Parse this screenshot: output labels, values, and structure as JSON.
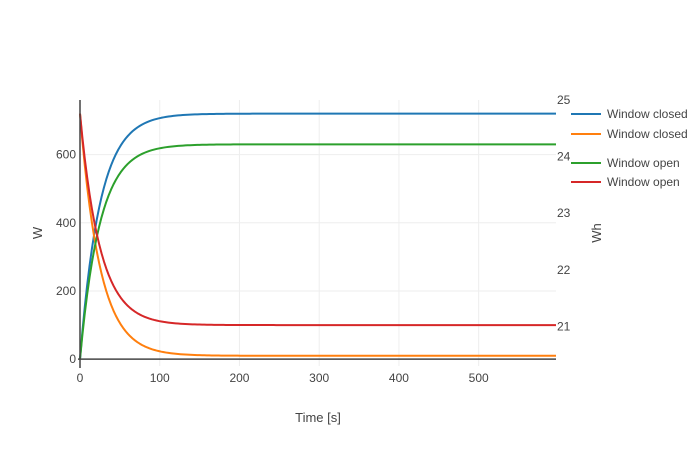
{
  "chart_data": {
    "type": "line",
    "xlabel": "Time [s]",
    "ylabel": "W",
    "y2label": "Wh",
    "xlim": [
      0,
      597
    ],
    "ylim": [
      -20,
      760
    ],
    "y2lim": [
      20.3,
      25
    ],
    "x_ticks": [
      "0",
      "100",
      "200",
      "300",
      "400",
      "500"
    ],
    "x_tick_values": [
      0,
      100,
      200,
      300,
      400,
      500
    ],
    "y_ticks": [
      "0",
      "200",
      "400",
      "600"
    ],
    "y_tick_values": [
      0,
      200,
      400,
      600
    ],
    "y2_ticks": [
      "21",
      "22",
      "23",
      "24",
      "25"
    ],
    "y2_tick_values": [
      21,
      22,
      23,
      24,
      25
    ],
    "grid": true,
    "legend_position": "right",
    "series": [
      {
        "name": "Window closed",
        "color": "#1f77b4",
        "model": "rise",
        "start": 0,
        "end": 720,
        "tau": 25
      },
      {
        "name": "Window closed",
        "color": "#ff7f0e",
        "model": "decay",
        "start": 720,
        "end": 10,
        "tau": 25
      },
      {
        "name": "Window open",
        "color": "#2ca02c",
        "model": "rise",
        "start": 0,
        "end": 630,
        "tau": 25
      },
      {
        "name": "Window open",
        "color": "#d62728",
        "model": "decay",
        "start": 720,
        "end": 100,
        "tau": 25
      }
    ]
  }
}
